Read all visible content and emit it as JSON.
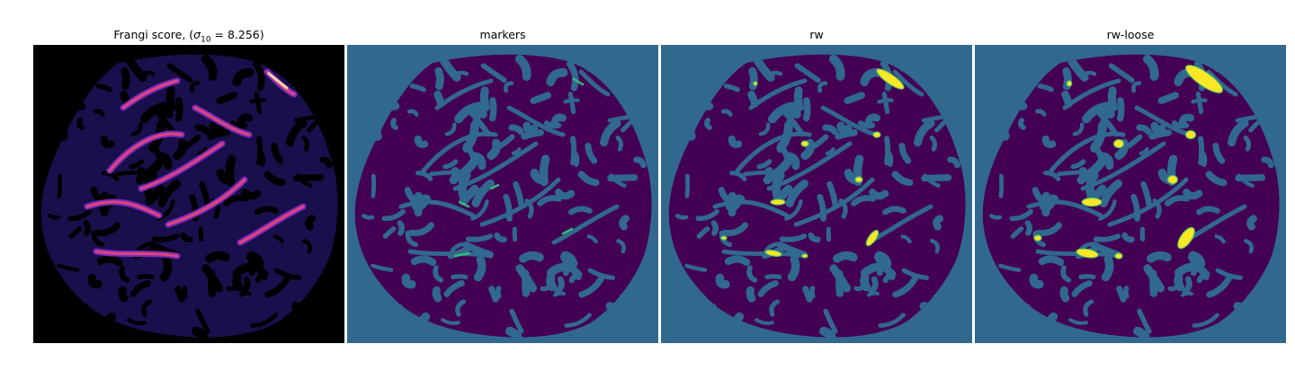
{
  "figure": {
    "titles": {
      "frangi_prefix": "Frangi score, (",
      "sigma_symbol": "σ",
      "sigma_subscript": "10",
      "sigma_value": " = 8.256)",
      "markers": "markers",
      "rw": "rw",
      "rw_loose": "rw-loose"
    },
    "colors": {
      "background_frangi": "#000000",
      "frangi_low": "#2d1b8a",
      "frangi_mid": "#7a2ab8",
      "frangi_high": "#e0447a",
      "frangi_peak": "#fcd9a0",
      "teal_background": "#31688e",
      "dark_purple": "#440154",
      "marker_green": "#35b779",
      "marker_light": "#5ec962",
      "yellow": "#fde725"
    },
    "colormaps": [
      "magma",
      "viridis"
    ]
  }
}
